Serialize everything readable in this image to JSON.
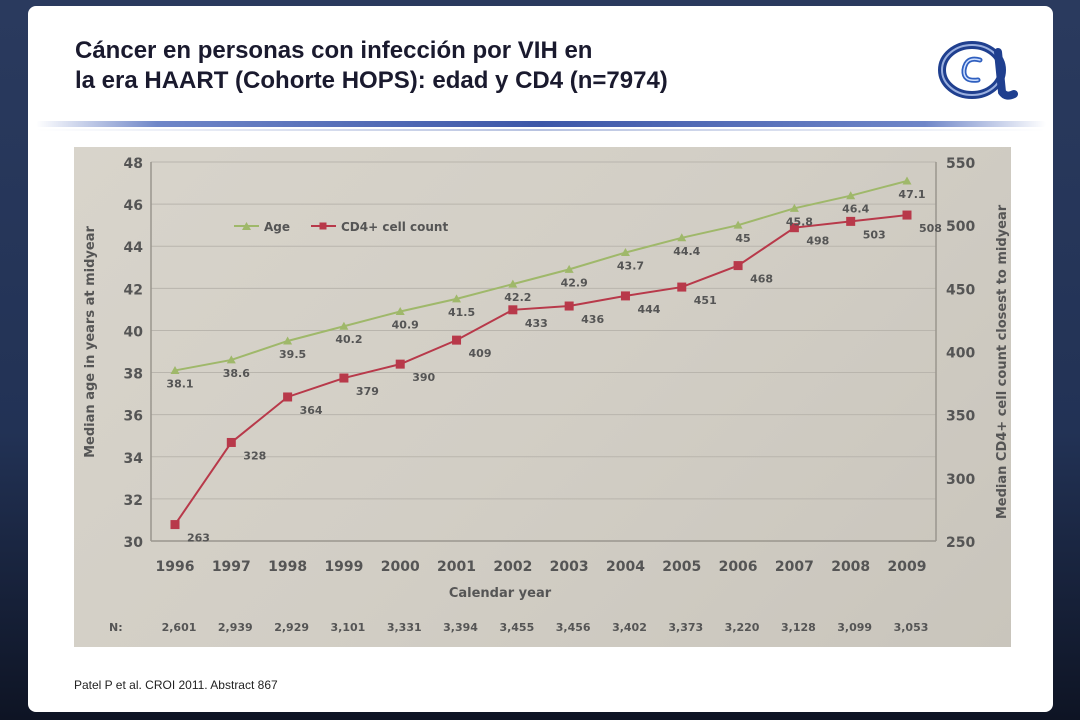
{
  "slide": {
    "title_line1": "Cáncer en personas con infección por VIH en",
    "title_line2": "la era HAART (Cohorte HOPS): edad y CD4 (n=7974)",
    "citation": "Patel P et al. CROI 2011. Abstract 867",
    "logo_icon": "cohort-a-logo-icon",
    "accent_color": "#3d57a8"
  },
  "chart_data": {
    "type": "line",
    "x": [
      "1996",
      "1997",
      "1998",
      "1999",
      "2000",
      "2001",
      "2002",
      "2003",
      "2004",
      "2005",
      "2006",
      "2007",
      "2008",
      "2009"
    ],
    "xlabel": "Calendar year",
    "ylabel_left": "Median age in years at midyear",
    "ylabel_right": "Median CD4+ cell count closest to midyear",
    "ylim_left": [
      30,
      48
    ],
    "yticks_left": [
      "30",
      "32",
      "34",
      "36",
      "38",
      "40",
      "42",
      "44",
      "46",
      "48"
    ],
    "ylim_right": [
      250,
      550
    ],
    "yticks_right": [
      "250",
      "300",
      "350",
      "400",
      "450",
      "500",
      "550"
    ],
    "legend_position": "top-left",
    "grid": true,
    "series": [
      {
        "name": "Age",
        "axis": "left",
        "color": "#9fb86a",
        "marker": "triangle",
        "values": [
          38.1,
          38.6,
          39.5,
          40.2,
          40.9,
          41.5,
          42.2,
          42.9,
          43.7,
          44.4,
          45,
          45.8,
          46.4,
          47.1
        ],
        "labels": [
          "38.1",
          "38.6",
          "39.5",
          "40.2",
          "40.9",
          "41.5",
          "42.2",
          "42.9",
          "43.7",
          "44.4",
          "45",
          "45.8",
          "46.4",
          "47.1"
        ]
      },
      {
        "name": "CD4+ cell count",
        "axis": "right",
        "color": "#b8394a",
        "marker": "square",
        "values": [
          263,
          328,
          364,
          379,
          390,
          409,
          433,
          436,
          444,
          451,
          468,
          498,
          503,
          508
        ],
        "labels": [
          "263",
          "328",
          "364",
          "379",
          "390",
          "409",
          "433",
          "436",
          "444",
          "451",
          "468",
          "498",
          "503",
          "508"
        ]
      }
    ],
    "n_row_label": "N:",
    "n_values": [
      "2,601",
      "2,939",
      "2,929",
      "3,101",
      "3,331",
      "3,394",
      "3,455",
      "3,456",
      "3,402",
      "3,373",
      "3,220",
      "3,128",
      "3,099",
      "3,053"
    ]
  }
}
